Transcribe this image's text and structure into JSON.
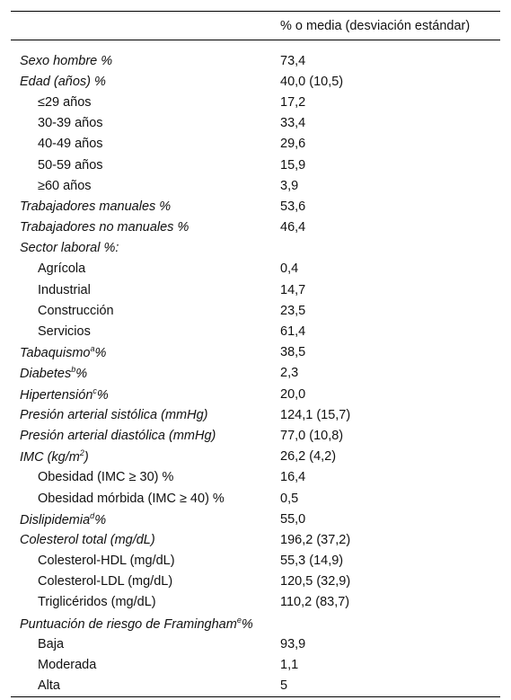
{
  "header": {
    "value_column": "% o media (desviación estándar)"
  },
  "rows": [
    {
      "label": "Sexo hombre %",
      "value": "73,4"
    },
    {
      "label": "Edad (años) %",
      "value": "40,0 (10,5)",
      "children": [
        {
          "label": "≤29 años",
          "value": "17,2"
        },
        {
          "label": "30-39 años",
          "value": "33,4"
        },
        {
          "label": "40-49 años",
          "value": "29,6"
        },
        {
          "label": "50-59 años",
          "value": "15,9"
        },
        {
          "label": "≥60 años",
          "value": "3,9"
        }
      ]
    },
    {
      "label": "Trabajadores manuales %",
      "value": "53,6"
    },
    {
      "label": "Trabajadores no manuales %",
      "value": "46,4"
    },
    {
      "label": "Sector laboral %:",
      "children": [
        {
          "label": "Agrícola",
          "value": "0,4"
        },
        {
          "label": "Industrial",
          "value": "14,7"
        },
        {
          "label": "Construcción",
          "value": "23,5"
        },
        {
          "label": "Servicios",
          "value": "61,4"
        }
      ]
    },
    {
      "label": "Tabaquismo",
      "sup": "a",
      "label_after": "%",
      "value": "38,5"
    },
    {
      "label": "Diabetes",
      "sup": "b",
      "label_after": "%",
      "value": "2,3"
    },
    {
      "label": "Hipertensión",
      "sup": "c",
      "label_after": "%",
      "value": "20,0"
    },
    {
      "label": "Presión arterial sistólica (mmHg)",
      "value": "124,1 (15,7)"
    },
    {
      "label": "Presión arterial diastólica (mmHg)",
      "value": "77,0 (10,8)"
    },
    {
      "label": "IMC (kg/m",
      "sup": "2",
      "label_after": ")",
      "value": "26,2 (4,2)",
      "children": [
        {
          "label": "Obesidad (IMC ≥ 30) %",
          "value": "16,4"
        },
        {
          "label": "Obesidad mórbida (IMC ≥ 40) %",
          "value": "0,5"
        }
      ]
    },
    {
      "label": "Dislipidemia",
      "sup": "d",
      "label_after": "%",
      "value": "55,0"
    },
    {
      "label": "Colesterol total (mg/dL)",
      "value": "196,2 (37,2)",
      "children": [
        {
          "label": "Colesterol-HDL (mg/dL)",
          "value": "55,3 (14,9)"
        },
        {
          "label": "Colesterol-LDL (mg/dL)",
          "value": "120,5 (32,9)"
        },
        {
          "label": "Triglicéridos (mg/dL)",
          "value": "110,2 (83,7)"
        }
      ]
    },
    {
      "label": "Puntuación de riesgo de Framingham",
      "sup": "e",
      "label_after": "%",
      "children": [
        {
          "label": "Baja",
          "value": "93,9"
        },
        {
          "label": "Moderada",
          "value": "1,1"
        },
        {
          "label": "Alta",
          "value": "5"
        }
      ]
    }
  ]
}
